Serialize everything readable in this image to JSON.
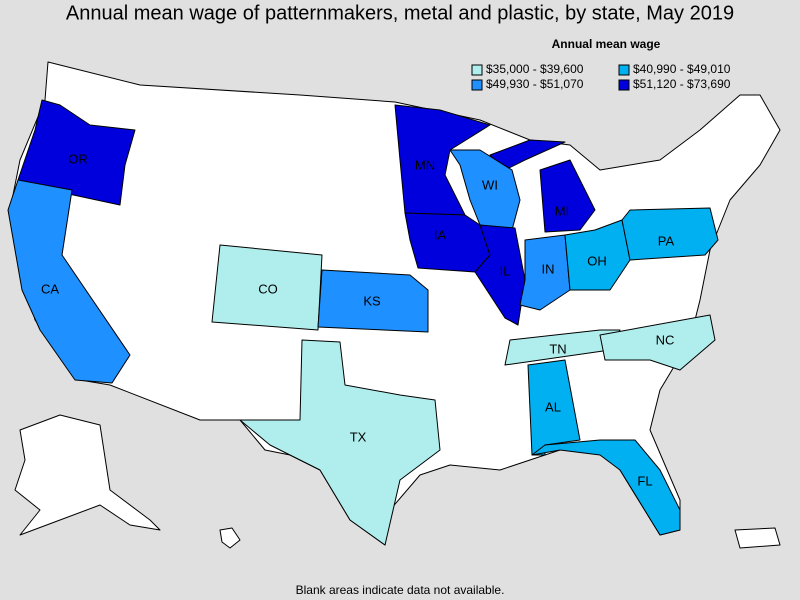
{
  "title": "Annual mean wage of patternmakers, metal and plastic, by state, May 2019",
  "legend": {
    "title": "Annual mean wage",
    "items": [
      {
        "label": "$35,000 - $39,600",
        "color": "#b0eeee"
      },
      {
        "label": "$40,990 - $49,010",
        "color": "#00b0f0"
      },
      {
        "label": "$49,930 - $51,070",
        "color": "#1e90ff"
      },
      {
        "label": "$51,120 - $73,690",
        "color": "#0000dd"
      }
    ]
  },
  "states": [
    {
      "label": "OR",
      "color": "#0000dd"
    },
    {
      "label": "CA",
      "color": "#1e90ff"
    },
    {
      "label": "CO",
      "color": "#b0eeee"
    },
    {
      "label": "KS",
      "color": "#1e90ff"
    },
    {
      "label": "TX",
      "color": "#b0eeee"
    },
    {
      "label": "MN",
      "color": "#0000dd"
    },
    {
      "label": "IA",
      "color": "#0000dd"
    },
    {
      "label": "WI",
      "color": "#1e90ff"
    },
    {
      "label": "IL",
      "color": "#0000dd"
    },
    {
      "label": "IN",
      "color": "#1e90ff"
    },
    {
      "label": "MI",
      "color": "#0000dd"
    },
    {
      "label": "OH",
      "color": "#00b0f0"
    },
    {
      "label": "PA",
      "color": "#00b0f0"
    },
    {
      "label": "TN",
      "color": "#b0eeee"
    },
    {
      "label": "NC",
      "color": "#b0eeee"
    },
    {
      "label": "AL",
      "color": "#00b0f0"
    },
    {
      "label": "FL",
      "color": "#00b0f0"
    }
  ],
  "footnote": "Blank areas indicate data not available."
}
